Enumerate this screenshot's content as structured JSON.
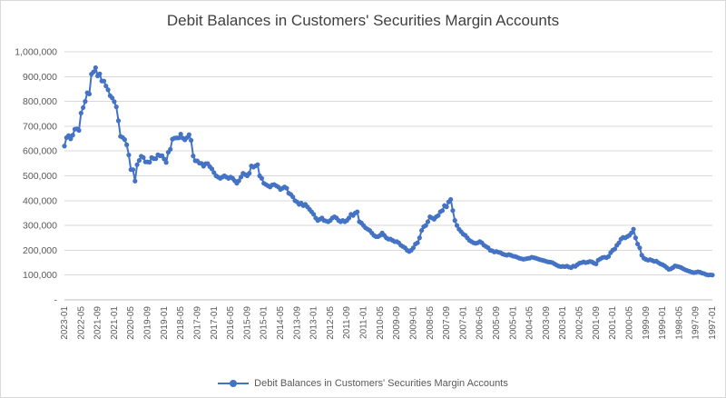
{
  "chart_data": {
    "type": "line",
    "title": "Debit Balances in Customers' Securities Margin Accounts",
    "legend": "Debit Balances in Customers' Securities Margin Accounts",
    "legend_position": "bottom",
    "grid": true,
    "line_color": "#4472c4",
    "gridline_color": "#d9d9d9",
    "axis_text_color": "#595959",
    "x_axis": {
      "kind": "category-monthly-newest-first",
      "start": "2023-01",
      "end": "1997-01",
      "tick_every": 8,
      "tick_labels": [
        "2023-01",
        "2022-05",
        "2021-09",
        "2021-01",
        "2020-05",
        "2019-09",
        "2019-01",
        "2018-05",
        "2017-09",
        "2017-01",
        "2016-05",
        "2015-09",
        "2015-01",
        "2014-05",
        "2013-09",
        "2013-01",
        "2012-05",
        "2011-09",
        "2011-01",
        "2010-05",
        "2009-09",
        "2009-01",
        "2008-05",
        "2007-09",
        "2007-01",
        "2006-05",
        "2005-09",
        "2005-01",
        "2004-05",
        "2003-09",
        "2003-01",
        "2002-05",
        "2001-09",
        "2001-01",
        "2000-05",
        "1999-09",
        "1999-01",
        "1998-05",
        "1997-09",
        "1997-01"
      ]
    },
    "y_axis": {
      "min": 0,
      "max": 1000000,
      "step": 100000,
      "tick_labels": [
        "1,000,000",
        "900,000",
        "800,000",
        "700,000",
        "600,000",
        "500,000",
        "400,000",
        "300,000",
        "200,000",
        "100,000",
        "-"
      ]
    },
    "series": [
      {
        "name": "Debit Balances in Customers' Securities Margin Accounts",
        "marker": "circle",
        "values_newest_first": [
          620000,
          654000,
          662000,
          649000,
          664000,
          688000,
          689000,
          683000,
          753000,
          775000,
          800000,
          835000,
          830000,
          910000,
          919000,
          936000,
          903000,
          911000,
          882000,
          882000,
          862000,
          847000,
          823000,
          814000,
          799000,
          778000,
          722000,
          659000,
          655000,
          646000,
          625000,
          584000,
          525000,
          525000,
          479000,
          545000,
          562000,
          579000,
          574000,
          556000,
          556000,
          555000,
          574000,
          569000,
          569000,
          585000,
          581000,
          581000,
          568000,
          554000,
          595000,
          607000,
          648000,
          652000,
          653000,
          653000,
          668000,
          652000,
          645000,
          654000,
          666000,
          643000,
          580000,
          561000,
          560000,
          551000,
          550000,
          539000,
          549000,
          549000,
          537000,
          528000,
          513000,
          500000,
          495000,
          490000,
          495000,
          500000,
          495000,
          490000,
          495000,
          490000,
          480000,
          470000,
          480000,
          495000,
          510000,
          505000,
          500000,
          510000,
          540000,
          535000,
          540000,
          545000,
          500000,
          490000,
          470000,
          465000,
          460000,
          455000,
          463000,
          465000,
          460000,
          455000,
          445000,
          450000,
          455000,
          450000,
          430000,
          425000,
          415000,
          400000,
          395000,
          385000,
          390000,
          380000,
          385000,
          375000,
          365000,
          355000,
          345000,
          330000,
          320000,
          325000,
          330000,
          320000,
          318000,
          315000,
          320000,
          330000,
          335000,
          330000,
          320000,
          315000,
          320000,
          315000,
          320000,
          330000,
          345000,
          340000,
          350000,
          355000,
          315000,
          310000,
          300000,
          290000,
          285000,
          280000,
          270000,
          260000,
          255000,
          255000,
          260000,
          270000,
          260000,
          250000,
          245000,
          245000,
          240000,
          235000,
          235000,
          230000,
          220000,
          215000,
          210000,
          200000,
          195000,
          200000,
          210000,
          225000,
          230000,
          250000,
          280000,
          295000,
          300000,
          315000,
          335000,
          330000,
          325000,
          335000,
          340000,
          355000,
          360000,
          380000,
          375000,
          395000,
          405000,
          360000,
          320000,
          300000,
          285000,
          275000,
          265000,
          260000,
          250000,
          240000,
          235000,
          230000,
          228000,
          230000,
          235000,
          230000,
          220000,
          215000,
          210000,
          200000,
          198000,
          193000,
          195000,
          192000,
          190000,
          185000,
          182000,
          180000,
          183000,
          180000,
          176000,
          175000,
          172000,
          168000,
          166000,
          164000,
          165000,
          167000,
          168000,
          172000,
          170000,
          168000,
          165000,
          162000,
          160000,
          158000,
          155000,
          153000,
          152000,
          150000,
          145000,
          140000,
          136000,
          134000,
          135000,
          134000,
          136000,
          132000,
          130000,
          136000,
          135000,
          142000,
          148000,
          150000,
          153000,
          150000,
          152000,
          155000,
          153000,
          148000,
          145000,
          160000,
          165000,
          170000,
          172000,
          170000,
          175000,
          190000,
          200000,
          205000,
          220000,
          230000,
          245000,
          252000,
          250000,
          255000,
          260000,
          270000,
          285000,
          250000,
          225000,
          210000,
          180000,
          168000,
          163000,
          160000,
          162000,
          159000,
          155000,
          156000,
          150000,
          145000,
          142000,
          137000,
          130000,
          123000,
          125000,
          130000,
          137000,
          135000,
          133000,
          130000,
          125000,
          121000,
          118000,
          115000,
          112000,
          110000,
          111000,
          113000,
          112000,
          108000,
          106000,
          102000,
          100000,
          101000,
          100000
        ]
      }
    ]
  }
}
